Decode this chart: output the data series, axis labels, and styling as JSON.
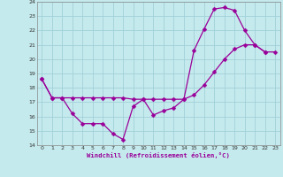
{
  "xlabel": "Windchill (Refroidissement éolien,°C)",
  "bg_color": "#c5eaed",
  "grid_color": "#a0d0d8",
  "line_color": "#990099",
  "xlim": [
    -0.5,
    23.5
  ],
  "ylim": [
    14,
    24
  ],
  "xticks": [
    0,
    1,
    2,
    3,
    4,
    5,
    6,
    7,
    8,
    9,
    10,
    11,
    12,
    13,
    14,
    15,
    16,
    17,
    18,
    19,
    20,
    21,
    22,
    23
  ],
  "yticks": [
    14,
    15,
    16,
    17,
    18,
    19,
    20,
    21,
    22,
    23,
    24
  ],
  "line1_x": [
    0,
    1,
    2,
    3,
    4,
    5,
    6,
    7,
    8,
    9,
    10,
    11,
    12,
    13,
    14,
    15,
    16,
    17,
    18,
    19,
    20,
    21,
    22
  ],
  "line1_y": [
    18.6,
    17.3,
    17.3,
    16.2,
    15.5,
    15.5,
    15.5,
    14.8,
    14.4,
    16.7,
    17.2,
    16.1,
    16.4,
    16.6,
    17.2,
    20.6,
    22.1,
    23.5,
    23.6,
    23.4,
    22.0,
    21.0,
    20.5
  ],
  "line2_x": [
    0,
    1,
    2,
    3,
    4,
    5,
    6,
    7,
    8,
    9,
    10,
    11,
    12,
    13,
    14,
    15,
    16,
    17,
    18,
    19,
    20,
    21,
    22,
    23
  ],
  "line2_y": [
    18.6,
    17.3,
    17.3,
    17.3,
    17.3,
    17.3,
    17.3,
    17.3,
    17.3,
    17.2,
    17.2,
    17.2,
    17.2,
    17.2,
    17.2,
    17.5,
    18.2,
    19.1,
    20.0,
    20.7,
    21.0,
    21.0,
    20.5,
    20.5
  ],
  "markersize": 2.5,
  "linewidth": 0.9
}
